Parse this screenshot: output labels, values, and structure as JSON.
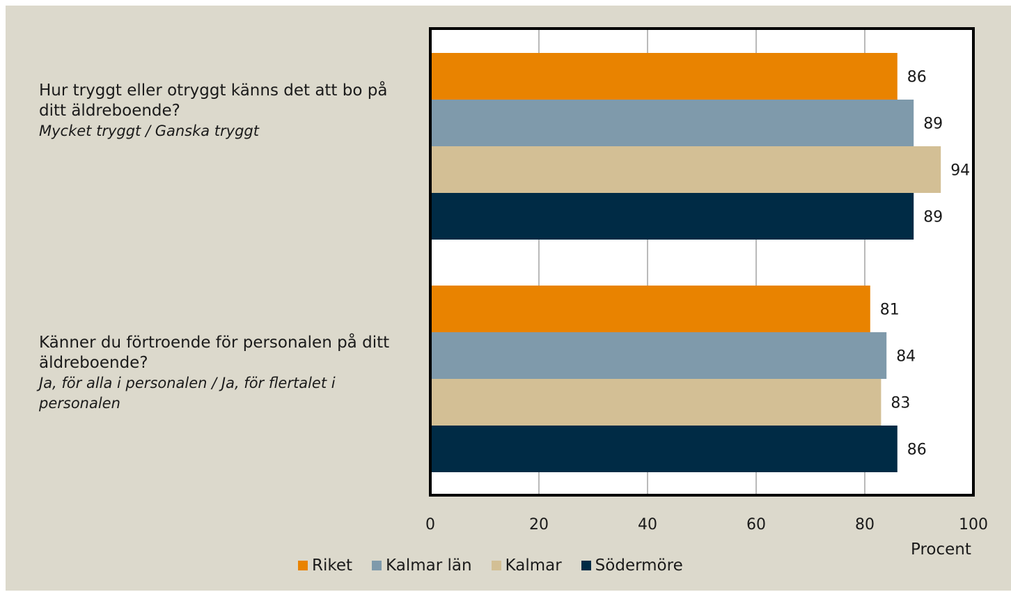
{
  "chart_data": {
    "type": "bar",
    "orientation": "horizontal",
    "categories": [
      {
        "question": "Hur tryggt eller otryggt känns det att bo på ditt äldreboende?",
        "answer": "Mycket tryggt / Ganska tryggt"
      },
      {
        "question": "Känner du förtroende för personalen på ditt äldreboende?",
        "answer": "Ja, för alla i personalen / Ja, för flertalet i personalen"
      }
    ],
    "series": [
      {
        "name": "Riket",
        "color": "#e98300",
        "values": [
          86,
          81
        ]
      },
      {
        "name": "Kalmar län",
        "color": "#7f9aab",
        "values": [
          89,
          84
        ]
      },
      {
        "name": "Kalmar",
        "color": "#d3bf95",
        "values": [
          94,
          83
        ]
      },
      {
        "name": "Södermöre",
        "color": "#002b45",
        "values": [
          89,
          86
        ]
      }
    ],
    "xlim": [
      0,
      100
    ],
    "xticks": [
      0,
      20,
      40,
      60,
      80,
      100
    ],
    "xlabel": "Procent",
    "grid": true,
    "legend_position": "bottom"
  }
}
